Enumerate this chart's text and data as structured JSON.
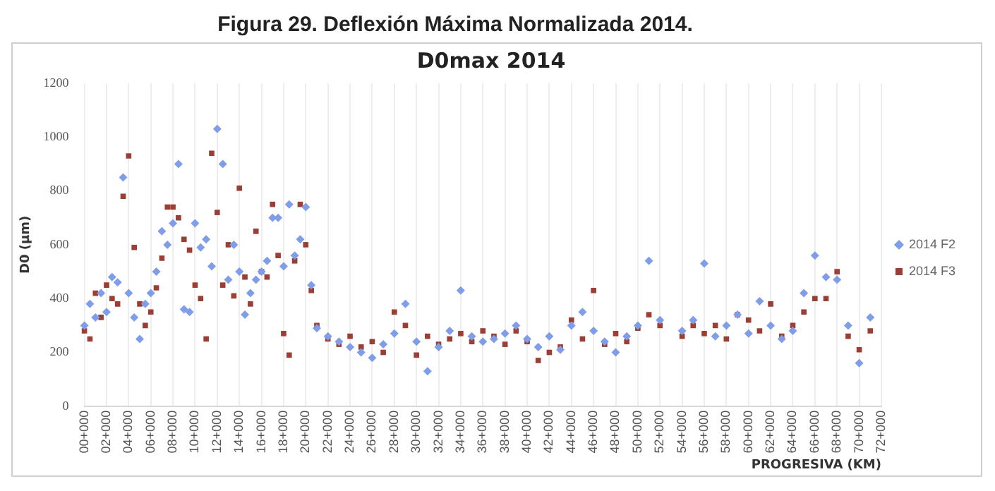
{
  "chart_data": {
    "type": "scatter",
    "title": "Figura 29. Deflexión Máxima Normalizada 2014.",
    "subtitle": "D0max 2014",
    "xlabel": "PROGRESIVA (KM)",
    "ylabel": "D0 (µm)",
    "categories": [
      "00+000",
      null,
      null,
      null,
      "02+000",
      null,
      null,
      null,
      "04+000",
      null,
      null,
      null,
      "06+000",
      null,
      null,
      null,
      "08+000",
      null,
      null,
      null,
      "10+000",
      null,
      null,
      null,
      "12+000",
      null,
      null,
      null,
      "14+000",
      null,
      null,
      null,
      "16+000",
      null,
      null,
      null,
      "18+000",
      null,
      null,
      null,
      "20+000",
      null,
      null,
      null,
      "22+000",
      null,
      null,
      null,
      "24+000",
      null,
      null,
      null,
      "26+000",
      null,
      null,
      null,
      "28+000",
      null,
      null,
      null,
      "30+000",
      null,
      null,
      null,
      "32+000",
      null,
      null,
      null,
      "34+000",
      null,
      null,
      null,
      "36+000",
      null,
      null,
      null,
      "38+000",
      null,
      null,
      null,
      "40+000",
      null,
      null,
      null,
      "42+000",
      null,
      null,
      null,
      "44+000",
      null,
      null,
      null,
      "46+000",
      null,
      null,
      null,
      "48+000",
      null,
      null,
      null,
      "50+000",
      null,
      null,
      null,
      "52+000",
      null,
      null,
      null,
      "54+000",
      null,
      null,
      null,
      "56+000",
      null,
      null,
      null,
      "58+000",
      null,
      null,
      null,
      "60+000",
      null,
      null,
      null,
      "62+000",
      null,
      null,
      null,
      "64+000",
      null,
      null,
      null,
      "66+000",
      null,
      null,
      null,
      "68+000",
      null,
      null,
      null,
      "70+000",
      null,
      null,
      null,
      "72+000"
    ],
    "series": [
      {
        "name": "2014 F2",
        "color": "#7f9de8",
        "marker": "diamond",
        "values": [
          300,
          380,
          330,
          420,
          350,
          480,
          460,
          850,
          420,
          330,
          250,
          380,
          420,
          500,
          650,
          600,
          680,
          900,
          360,
          350,
          680,
          590,
          620,
          520,
          1030,
          900,
          470,
          600,
          500,
          340,
          420,
          470,
          500,
          540,
          700,
          700,
          520,
          750,
          560,
          620,
          740,
          450,
          290,
          null,
          260,
          null,
          240,
          null,
          220,
          null,
          200,
          null,
          180,
          null,
          230,
          null,
          270,
          null,
          380,
          null,
          240,
          null,
          130,
          null,
          220,
          null,
          280,
          null,
          430,
          null,
          260,
          null,
          240,
          null,
          250,
          null,
          270,
          null,
          300,
          null,
          250,
          null,
          220,
          null,
          260,
          null,
          210,
          null,
          300,
          null,
          350,
          null,
          280,
          null,
          240,
          null,
          200,
          null,
          260,
          null,
          300,
          null,
          540,
          null,
          320,
          null,
          null,
          null,
          280,
          null,
          320,
          null,
          530,
          null,
          260,
          null,
          300,
          null,
          340,
          null,
          270,
          null,
          390,
          null,
          300,
          null,
          250,
          null,
          280,
          null,
          420,
          null,
          560,
          null,
          480,
          null,
          470,
          null,
          300,
          null,
          160,
          null,
          330,
          null,
          null
        ]
      },
      {
        "name": "2014 F3",
        "color": "#9b3f35",
        "marker": "square",
        "values": [
          280,
          250,
          420,
          330,
          450,
          400,
          380,
          780,
          930,
          590,
          380,
          300,
          350,
          440,
          550,
          740,
          740,
          700,
          620,
          580,
          450,
          400,
          250,
          940,
          720,
          450,
          600,
          410,
          810,
          480,
          380,
          650,
          500,
          480,
          750,
          560,
          270,
          190,
          540,
          750,
          600,
          430,
          300,
          null,
          250,
          null,
          230,
          null,
          260,
          null,
          220,
          null,
          240,
          null,
          200,
          null,
          350,
          null,
          300,
          null,
          190,
          null,
          260,
          null,
          230,
          null,
          250,
          null,
          270,
          null,
          240,
          null,
          280,
          null,
          260,
          null,
          230,
          null,
          280,
          null,
          240,
          null,
          170,
          null,
          200,
          null,
          220,
          null,
          320,
          null,
          250,
          null,
          430,
          null,
          230,
          null,
          270,
          null,
          240,
          null,
          290,
          null,
          340,
          null,
          300,
          null,
          null,
          null,
          260,
          null,
          300,
          null,
          270,
          null,
          300,
          null,
          250,
          null,
          340,
          null,
          320,
          null,
          280,
          null,
          380,
          null,
          260,
          null,
          300,
          null,
          350,
          null,
          400,
          null,
          400,
          null,
          500,
          null,
          260,
          null,
          210,
          null,
          280,
          null,
          null
        ]
      }
    ],
    "ylim": [
      0,
      1200
    ],
    "yticks": [
      0,
      200,
      400,
      600,
      800,
      1000,
      1200
    ],
    "grid": "x",
    "legend": "right"
  }
}
